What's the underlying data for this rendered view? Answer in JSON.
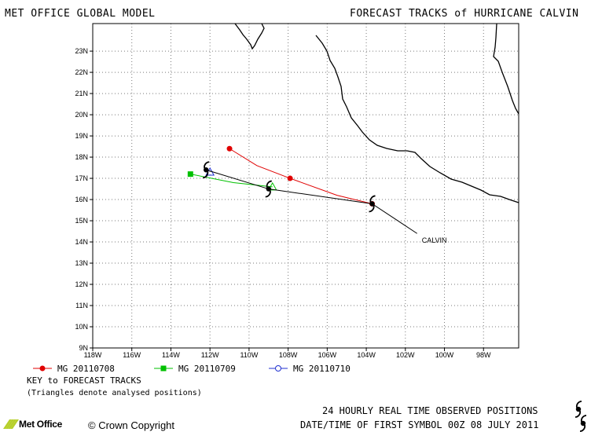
{
  "header": {
    "model_title": "MET OFFICE GLOBAL MODEL",
    "forecast_title": "FORECAST TRACKS of HURRICANE CALVIN"
  },
  "map": {
    "lat_ticks": [
      "9N",
      "10N",
      "11N",
      "12N",
      "13N",
      "14N",
      "15N",
      "16N",
      "17N",
      "18N",
      "19N",
      "20N",
      "21N",
      "22N",
      "23N"
    ],
    "lon_ticks": [
      "118W",
      "116W",
      "114W",
      "112W",
      "110W",
      "108W",
      "106W",
      "104W",
      "102W",
      "100W",
      "98W"
    ],
    "lon_range": [
      -118,
      -96.2
    ],
    "lat_range": [
      9,
      24.3
    ],
    "storm_label": "CALVIN",
    "colors": {
      "observed": "#000000",
      "mg_20110708": "#e00000",
      "mg_20110709": "#00c000",
      "mg_20110710": "#2030d0",
      "coast": "#000000"
    }
  },
  "legend": {
    "items": [
      {
        "label": "MG 20110708",
        "color": "#e00000",
        "marker": "circle-filled"
      },
      {
        "label": "MG 20110709",
        "color": "#00c000",
        "marker": "square-filled"
      },
      {
        "label": "MG 20110710",
        "color": "#2030d0",
        "marker": "circle-open"
      }
    ],
    "key_title": "KEY to FORECAST TRACKS",
    "key_note": "(Triangles denote analysed positions)"
  },
  "footer": {
    "observed_note": "24 HOURLY REAL TIME OBSERVED POSITIONS",
    "date_note": "DATE/TIME OF FIRST SYMBOL 00Z 08 JULY 2011",
    "copyright": "Crown Copyright",
    "brand": "Met Office"
  },
  "chart_data": {
    "type": "scatter",
    "tracks": [
      {
        "name": "CALVIN",
        "kind": "observed",
        "points": [
          {
            "lon": -103.7,
            "lat": 15.8
          },
          {
            "lon": -109.0,
            "lat": 16.5
          },
          {
            "lon": -112.2,
            "lat": 17.4
          }
        ]
      },
      {
        "name": "MG 20110708",
        "kind": "forecast",
        "points": [
          {
            "lon": -103.7,
            "lat": 15.8
          },
          {
            "lon": -105.5,
            "lat": 16.2
          },
          {
            "lon": -107.9,
            "lat": 17.0
          },
          {
            "lon": -109.6,
            "lat": 17.6
          },
          {
            "lon": -111.0,
            "lat": 18.4
          }
        ]
      },
      {
        "name": "MG 20110709",
        "kind": "forecast",
        "points": [
          {
            "lon": -108.8,
            "lat": 16.6
          },
          {
            "lon": -110.8,
            "lat": 16.8
          },
          {
            "lon": -113.0,
            "lat": 17.2
          }
        ]
      },
      {
        "name": "MG 20110710",
        "kind": "forecast",
        "points": [
          {
            "lon": -112.0,
            "lat": 17.3
          }
        ]
      }
    ]
  }
}
